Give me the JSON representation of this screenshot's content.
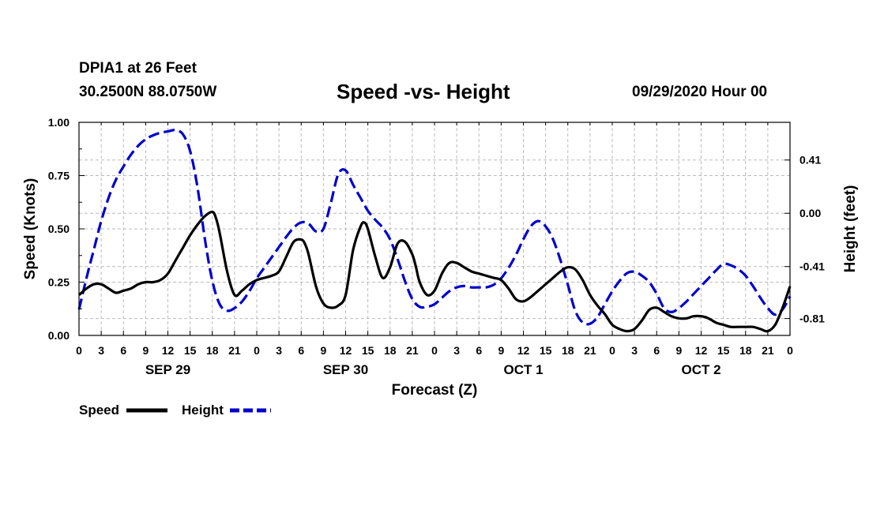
{
  "header": {
    "station": "DPIA1 at 26 Feet",
    "coords": "30.2500N 88.0750W",
    "title": "Speed -vs- Height",
    "timestamp": "09/29/2020 Hour 00"
  },
  "chart_data": {
    "type": "line",
    "title": "Speed -vs- Height",
    "xlabel": "Forecast (Z)",
    "ylabel_left": "Speed (Knots)",
    "ylabel_right": "Height (feet)",
    "x_range_hours": [
      0,
      96
    ],
    "x_tick_step_hours": 3,
    "x_tick_labels": [
      "0",
      "3",
      "6",
      "9",
      "12",
      "15",
      "18",
      "21",
      "0",
      "3",
      "6",
      "9",
      "12",
      "15",
      "18",
      "21",
      "0",
      "3",
      "6",
      "9",
      "12",
      "15",
      "18",
      "21",
      "0",
      "3",
      "6",
      "9",
      "12",
      "15",
      "18",
      "21",
      "0"
    ],
    "date_labels": [
      {
        "hour": 12,
        "label": "SEP 29"
      },
      {
        "hour": 36,
        "label": "SEP 30"
      },
      {
        "hour": 60,
        "label": "OCT 1"
      },
      {
        "hour": 84,
        "label": "OCT 2"
      }
    ],
    "y_left": {
      "range": [
        0,
        1
      ],
      "ticks": [
        0,
        0.25,
        0.5,
        0.75,
        1
      ],
      "tick_labels": [
        "0.00",
        "0.25",
        "0.50",
        "0.75",
        "1.00"
      ]
    },
    "y_right": {
      "range": [
        -0.94,
        0.7
      ],
      "ticks": [
        0.41,
        0.0,
        -0.41,
        -0.81
      ],
      "tick_labels": [
        "0.41",
        "0.00",
        "-0.41",
        "-0.81"
      ]
    },
    "grid": true,
    "legend_position": "bottom-left",
    "series": [
      {
        "name": "Speed",
        "axis": "left",
        "color": "#000000",
        "dash": "solid",
        "x": [
          0,
          1,
          2,
          3,
          4,
          5,
          6,
          7,
          8,
          9,
          10,
          11,
          12,
          13,
          14,
          15,
          16,
          17,
          18,
          18.5,
          19,
          20,
          21,
          22,
          23,
          24,
          25,
          26,
          27,
          28,
          29,
          30,
          30.5,
          31,
          32,
          33,
          34,
          35,
          36,
          37,
          38,
          38.5,
          39,
          40,
          41,
          42,
          43,
          44,
          45,
          45.5,
          46,
          47,
          48,
          49,
          50,
          51,
          52,
          53,
          54,
          55,
          56,
          57,
          58,
          59,
          60,
          61,
          62,
          63,
          64,
          65,
          66,
          67,
          68,
          69,
          70,
          71,
          72,
          73,
          74,
          75,
          76,
          77,
          78,
          79,
          80,
          81,
          82,
          83,
          84,
          85,
          86,
          87,
          88,
          89,
          90,
          91,
          92,
          93,
          94,
          95,
          96
        ],
        "values": [
          0.19,
          0.22,
          0.24,
          0.24,
          0.22,
          0.2,
          0.21,
          0.22,
          0.24,
          0.25,
          0.25,
          0.26,
          0.29,
          0.35,
          0.41,
          0.47,
          0.52,
          0.56,
          0.58,
          0.55,
          0.48,
          0.3,
          0.19,
          0.21,
          0.24,
          0.26,
          0.27,
          0.28,
          0.3,
          0.37,
          0.44,
          0.45,
          0.43,
          0.38,
          0.23,
          0.15,
          0.13,
          0.14,
          0.19,
          0.4,
          0.51,
          0.53,
          0.5,
          0.37,
          0.27,
          0.32,
          0.43,
          0.44,
          0.38,
          0.32,
          0.25,
          0.19,
          0.21,
          0.29,
          0.34,
          0.34,
          0.32,
          0.3,
          0.29,
          0.28,
          0.27,
          0.26,
          0.22,
          0.17,
          0.16,
          0.18,
          0.21,
          0.24,
          0.27,
          0.3,
          0.32,
          0.31,
          0.26,
          0.19,
          0.14,
          0.1,
          0.05,
          0.03,
          0.02,
          0.03,
          0.07,
          0.12,
          0.13,
          0.11,
          0.09,
          0.08,
          0.08,
          0.09,
          0.09,
          0.08,
          0.06,
          0.05,
          0.04,
          0.04,
          0.04,
          0.04,
          0.03,
          0.02,
          0.05,
          0.13,
          0.23
        ]
      },
      {
        "name": "Height",
        "axis": "right",
        "color": "#0000cc",
        "dash": "dashed",
        "x": [
          0,
          1,
          2,
          3,
          4,
          5,
          6,
          7,
          8,
          9,
          10,
          11,
          12,
          13,
          14,
          15,
          16,
          17,
          18,
          19,
          20,
          21,
          22,
          23,
          24,
          25,
          26,
          27,
          28,
          29,
          30,
          31,
          32,
          33,
          34,
          35,
          36,
          37,
          38,
          39,
          40,
          41,
          42,
          43,
          44,
          45,
          46,
          47,
          48,
          49,
          50,
          51,
          52,
          53,
          54,
          55,
          56,
          57,
          58,
          59,
          60,
          61,
          62,
          63,
          64,
          65,
          66,
          67,
          68,
          69,
          70,
          71,
          72,
          73,
          74,
          75,
          76,
          77,
          78,
          79,
          80,
          81,
          82,
          83,
          84,
          85,
          86,
          87,
          88,
          89,
          90,
          91,
          92,
          93,
          94,
          95,
          96
        ],
        "values": [
          -0.74,
          -0.5,
          -0.28,
          -0.06,
          0.12,
          0.26,
          0.36,
          0.45,
          0.52,
          0.57,
          0.6,
          0.62,
          0.63,
          0.64,
          0.61,
          0.48,
          0.2,
          -0.2,
          -0.52,
          -0.7,
          -0.75,
          -0.73,
          -0.68,
          -0.6,
          -0.5,
          -0.42,
          -0.34,
          -0.26,
          -0.18,
          -0.11,
          -0.07,
          -0.08,
          -0.14,
          -0.12,
          0.08,
          0.3,
          0.33,
          0.22,
          0.12,
          0.02,
          -0.05,
          -0.11,
          -0.2,
          -0.35,
          -0.52,
          -0.66,
          -0.72,
          -0.72,
          -0.7,
          -0.65,
          -0.6,
          -0.57,
          -0.56,
          -0.57,
          -0.57,
          -0.57,
          -0.55,
          -0.5,
          -0.42,
          -0.32,
          -0.2,
          -0.1,
          -0.06,
          -0.1,
          -0.2,
          -0.36,
          -0.55,
          -0.75,
          -0.84,
          -0.85,
          -0.8,
          -0.7,
          -0.6,
          -0.52,
          -0.46,
          -0.45,
          -0.48,
          -0.53,
          -0.62,
          -0.73,
          -0.76,
          -0.73,
          -0.68,
          -0.62,
          -0.56,
          -0.5,
          -0.44,
          -0.39,
          -0.4,
          -0.43,
          -0.48,
          -0.56,
          -0.65,
          -0.73,
          -0.78,
          -0.74,
          -0.64
        ]
      }
    ]
  }
}
